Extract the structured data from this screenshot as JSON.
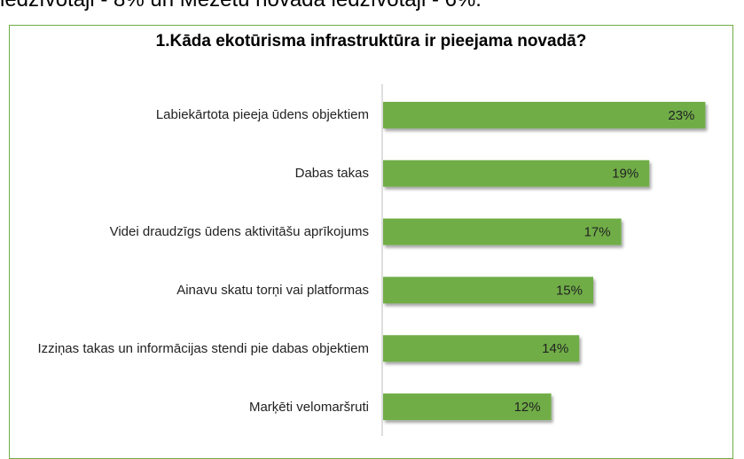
{
  "caption": "iedzīvotāji - 8% un Mežetu novadā iedzīvotāji - 6%.",
  "chart_data": {
    "type": "bar",
    "orientation": "horizontal",
    "title": "1.Kāda ekotūrisma infrastruktūra ir pieejama novadā?",
    "categories": [
      "Labiekārtota pieeja ūdens objektiem",
      "Dabas takas",
      "Videi draudzīgs ūdens aktivitāšu aprīkojums",
      "Ainavu skatu torņi vai platformas",
      "Izziņas takas un informācijas stendi pie dabas objektiem",
      "Marķēti velomaršruti"
    ],
    "values": [
      23,
      19,
      17,
      15,
      14,
      12
    ],
    "value_labels": [
      "23%",
      "19%",
      "17%",
      "15%",
      "14%",
      "12%"
    ],
    "color": "#70ad47",
    "xlim": [
      0,
      25
    ]
  }
}
